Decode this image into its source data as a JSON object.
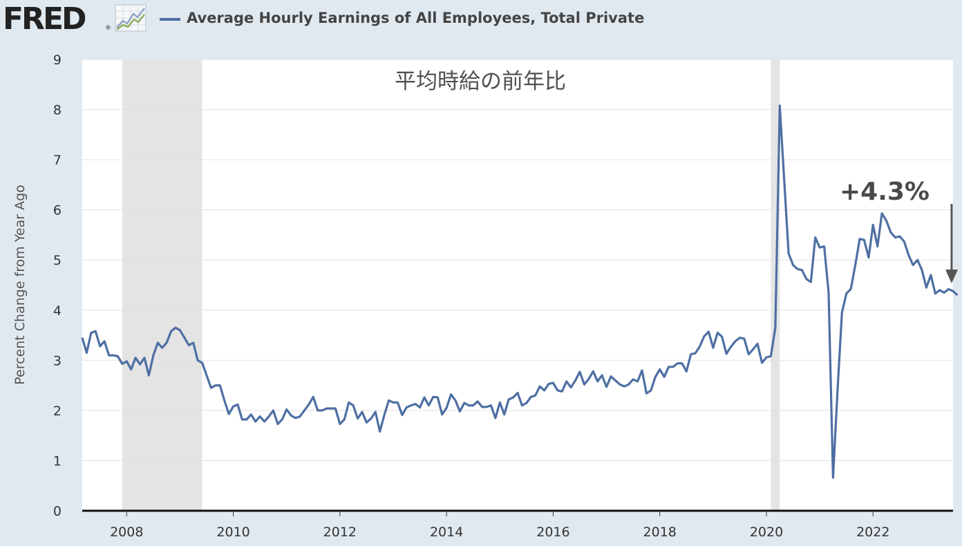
{
  "header": {
    "logo_text": "FRED",
    "logo_mark": "®",
    "logo_icon": "line-graph-icon",
    "legend_label": "Average Hourly Earnings of All Employees, Total Private",
    "series_color": "#4e6fa3"
  },
  "chart_data": {
    "type": "line",
    "title": "平均時給の前年比",
    "annotation": "+4.3%",
    "ylabel": "Percent Change from Year Ago",
    "xlabel": "",
    "ylim": [
      0,
      9
    ],
    "xlim": [
      "2007-03",
      "2023-07"
    ],
    "yticks": [
      0,
      1,
      2,
      3,
      4,
      5,
      6,
      7,
      8,
      9
    ],
    "xticks": [
      "2008",
      "2010",
      "2012",
      "2014",
      "2016",
      "2018",
      "2020",
      "2022"
    ],
    "recessions": [
      {
        "start": "2007-12",
        "end": "2009-06"
      },
      {
        "start": "2020-02",
        "end": "2020-04"
      }
    ],
    "grid": true,
    "series": [
      {
        "name": "Average Hourly Earnings of All Employees, Total Private",
        "color": "#4e6fa3",
        "start": "2007-03",
        "frequency": "monthly",
        "values": [
          3.45,
          3.15,
          3.55,
          3.58,
          3.28,
          3.38,
          3.1,
          3.1,
          3.08,
          2.93,
          2.98,
          2.82,
          3.05,
          2.92,
          3.05,
          2.7,
          3.1,
          3.35,
          3.25,
          3.35,
          3.58,
          3.65,
          3.6,
          3.45,
          3.3,
          3.35,
          3.0,
          2.95,
          2.7,
          2.45,
          2.5,
          2.5,
          2.2,
          1.93,
          2.08,
          2.12,
          1.82,
          1.82,
          1.92,
          1.78,
          1.88,
          1.78,
          1.88,
          2.0,
          1.73,
          1.82,
          2.02,
          1.9,
          1.85,
          1.88,
          2.0,
          2.12,
          2.27,
          2.0,
          2.0,
          2.04,
          2.04,
          2.04,
          1.73,
          1.82,
          2.16,
          2.1,
          1.84,
          1.97,
          1.76,
          1.84,
          1.97,
          1.58,
          1.91,
          2.2,
          2.16,
          2.16,
          1.91,
          2.06,
          2.1,
          2.13,
          2.06,
          2.26,
          2.1,
          2.27,
          2.26,
          1.92,
          2.05,
          2.32,
          2.2,
          1.98,
          2.15,
          2.1,
          2.1,
          2.18,
          2.07,
          2.07,
          2.1,
          1.85,
          2.16,
          1.92,
          2.22,
          2.26,
          2.35,
          2.1,
          2.15,
          2.27,
          2.3,
          2.48,
          2.4,
          2.53,
          2.55,
          2.4,
          2.38,
          2.58,
          2.46,
          2.6,
          2.77,
          2.52,
          2.63,
          2.78,
          2.58,
          2.7,
          2.47,
          2.68,
          2.6,
          2.52,
          2.48,
          2.52,
          2.62,
          2.58,
          2.8,
          2.34,
          2.4,
          2.67,
          2.82,
          2.67,
          2.87,
          2.87,
          2.94,
          2.94,
          2.78,
          3.12,
          3.14,
          3.28,
          3.48,
          3.57,
          3.25,
          3.55,
          3.47,
          3.13,
          3.27,
          3.38,
          3.45,
          3.43,
          3.12,
          3.22,
          3.33,
          2.95,
          3.06,
          3.08,
          3.65,
          8.08,
          6.6,
          5.13,
          4.9,
          4.82,
          4.8,
          4.62,
          4.56,
          5.45,
          5.25,
          5.27,
          4.35,
          0.66,
          2.4,
          3.95,
          4.33,
          4.42,
          4.9,
          5.42,
          5.4,
          5.05,
          5.7,
          5.27,
          5.93,
          5.78,
          5.55,
          5.45,
          5.47,
          5.37,
          5.1,
          4.9,
          5.0,
          4.8,
          4.45,
          4.7,
          4.33,
          4.4,
          4.35,
          4.42,
          4.38,
          4.3
        ]
      }
    ]
  }
}
